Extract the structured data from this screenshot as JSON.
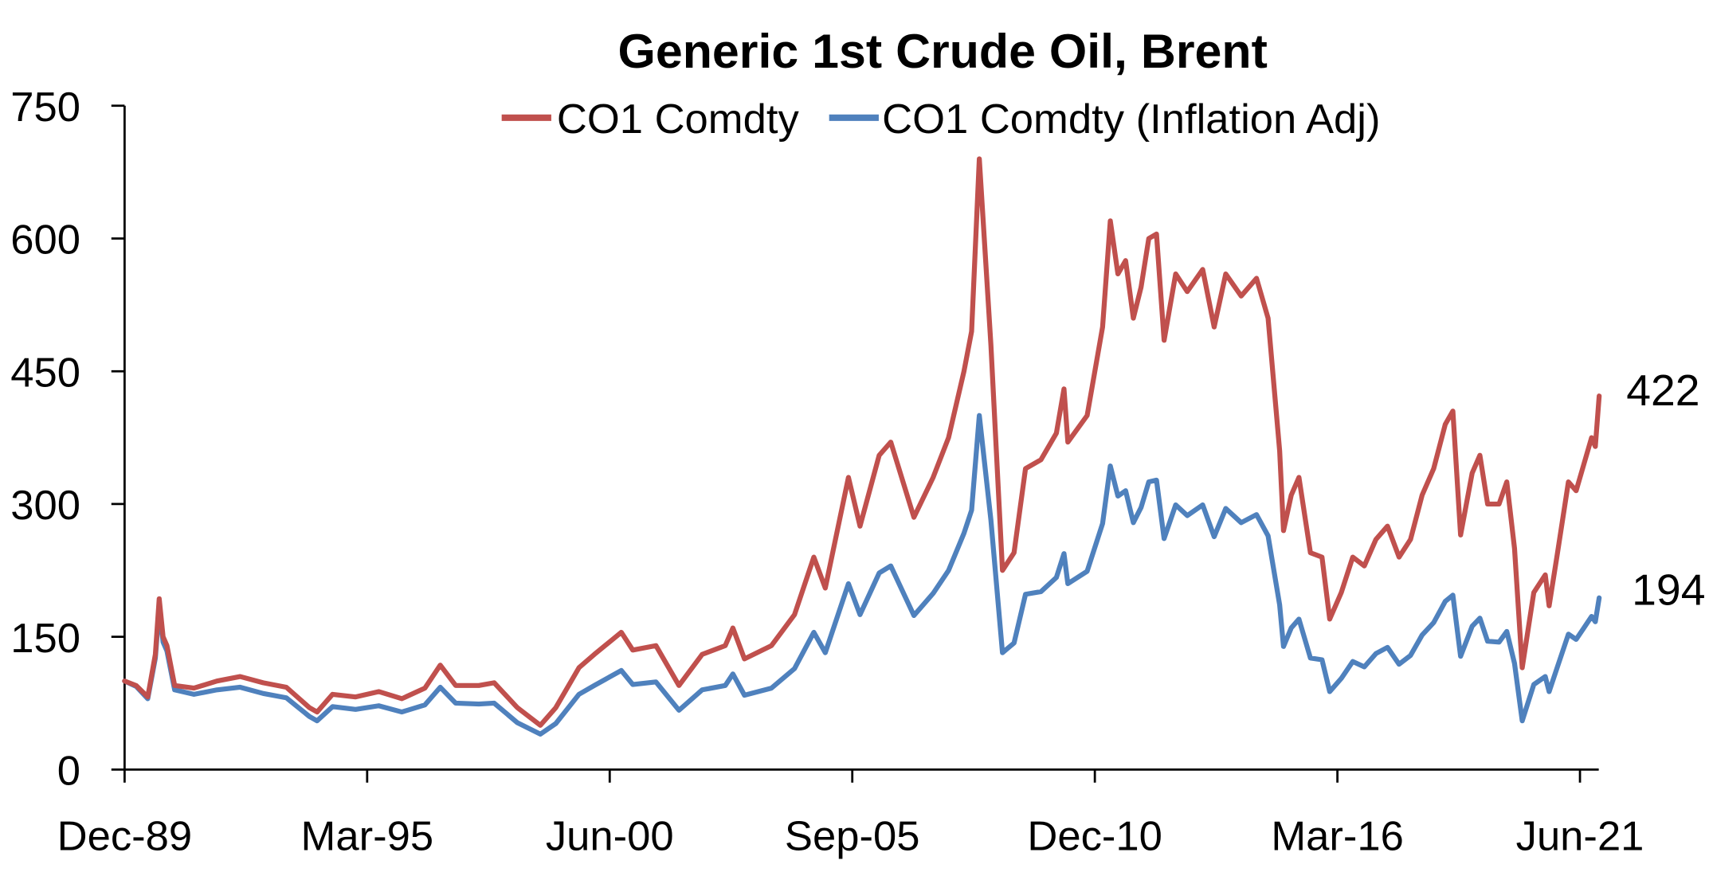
{
  "chart_data": {
    "type": "line",
    "title": "Generic 1st Crude Oil, Brent",
    "xlabel": "",
    "ylabel": "",
    "ylim": [
      0,
      750
    ],
    "yticks": [
      "0",
      "150",
      "300",
      "450",
      "600",
      "750"
    ],
    "ytick_values": [
      0,
      150,
      300,
      450,
      600,
      750
    ],
    "xtick_labels": [
      "Dec-89",
      "Mar-95",
      "Jun-00",
      "Sep-05",
      "Dec-10",
      "Mar-16",
      "Jun-21"
    ],
    "xtick_months": [
      0,
      63,
      126,
      189,
      252,
      315,
      378
    ],
    "x_unit": "months since Dec-89",
    "xlim": [
      0,
      383
    ],
    "grid": false,
    "legend_position": "top-center",
    "series": [
      {
        "name": "CO1 Comdty",
        "color": "#C0504D",
        "end_label": "422",
        "x": [
          0,
          3,
          6,
          8,
          9,
          10,
          11,
          13,
          18,
          24,
          30,
          36,
          42,
          48,
          50,
          54,
          60,
          66,
          72,
          78,
          82,
          86,
          92,
          96,
          102,
          108,
          112,
          118,
          122,
          129,
          132,
          138,
          144,
          150,
          156,
          158,
          161,
          168,
          174,
          179,
          182,
          188,
          191,
          196,
          199,
          205,
          210,
          214,
          218,
          220,
          222,
          225,
          228,
          231,
          234,
          238,
          242,
          244,
          245,
          250,
          254,
          256,
          258,
          260,
          262,
          264,
          266,
          268,
          270,
          273,
          276,
          280,
          283,
          286,
          290,
          294,
          297,
          300,
          301,
          303,
          305,
          308,
          311,
          313,
          316,
          319,
          322,
          325,
          328,
          331,
          334,
          337,
          340,
          343,
          345,
          347,
          350,
          352,
          354,
          357,
          359,
          361,
          363,
          366,
          369,
          370,
          372,
          375,
          377,
          379,
          381,
          382,
          383
        ],
        "values": [
          100,
          95,
          82,
          130,
          193,
          150,
          140,
          95,
          92,
          100,
          105,
          98,
          93,
          70,
          65,
          85,
          82,
          88,
          80,
          92,
          118,
          95,
          95,
          98,
          70,
          50,
          70,
          115,
          130,
          155,
          135,
          140,
          95,
          130,
          140,
          160,
          125,
          140,
          175,
          240,
          205,
          330,
          275,
          355,
          370,
          285,
          330,
          375,
          450,
          495,
          690,
          480,
          225,
          245,
          340,
          350,
          380,
          430,
          370,
          400,
          500,
          620,
          560,
          575,
          510,
          545,
          600,
          605,
          485,
          560,
          540,
          565,
          500,
          560,
          535,
          555,
          510,
          360,
          270,
          310,
          330,
          245,
          240,
          170,
          200,
          240,
          230,
          260,
          275,
          240,
          260,
          310,
          340,
          390,
          405,
          265,
          335,
          355,
          300,
          300,
          325,
          250,
          115,
          200,
          220,
          185,
          240,
          325,
          315,
          345,
          375,
          365,
          422
        ]
      },
      {
        "name": "CO1 Comdty (Inflation Adj)",
        "color": "#4F81BD",
        "end_label": "194",
        "x": [
          0,
          3,
          6,
          8,
          9,
          10,
          11,
          13,
          18,
          24,
          30,
          36,
          42,
          48,
          50,
          54,
          60,
          66,
          72,
          78,
          82,
          86,
          92,
          96,
          102,
          108,
          112,
          118,
          122,
          129,
          132,
          138,
          144,
          150,
          156,
          158,
          161,
          168,
          174,
          179,
          182,
          188,
          191,
          196,
          199,
          205,
          210,
          214,
          218,
          220,
          222,
          225,
          228,
          231,
          234,
          238,
          242,
          244,
          245,
          250,
          254,
          256,
          258,
          260,
          262,
          264,
          266,
          268,
          270,
          273,
          276,
          280,
          283,
          286,
          290,
          294,
          297,
          300,
          301,
          303,
          305,
          308,
          311,
          313,
          316,
          319,
          322,
          325,
          328,
          331,
          334,
          337,
          340,
          343,
          345,
          347,
          350,
          352,
          354,
          357,
          359,
          361,
          363,
          366,
          369,
          370,
          372,
          375,
          377,
          379,
          381,
          382,
          383
        ],
        "values": [
          100,
          94,
          80,
          126,
          183,
          144,
          134,
          90,
          85,
          90,
          93,
          86,
          81,
          60,
          55,
          71,
          68,
          72,
          65,
          73,
          93,
          75,
          74,
          75,
          53,
          40,
          52,
          85,
          95,
          112,
          96,
          99,
          67,
          90,
          95,
          108,
          84,
          92,
          114,
          155,
          132,
          210,
          175,
          222,
          230,
          174,
          199,
          225,
          267,
          293,
          400,
          282,
          132,
          143,
          198,
          201,
          217,
          244,
          210,
          224,
          278,
          343,
          309,
          315,
          279,
          296,
          325,
          327,
          261,
          299,
          287,
          299,
          263,
          295,
          279,
          288,
          264,
          186,
          139,
          160,
          170,
          126,
          124,
          88,
          103,
          122,
          116,
          131,
          138,
          119,
          129,
          152,
          166,
          190,
          197,
          128,
          162,
          171,
          145,
          144,
          156,
          120,
          55,
          96,
          105,
          88,
          114,
          153,
          147,
          160,
          173,
          167,
          194
        ]
      }
    ]
  }
}
